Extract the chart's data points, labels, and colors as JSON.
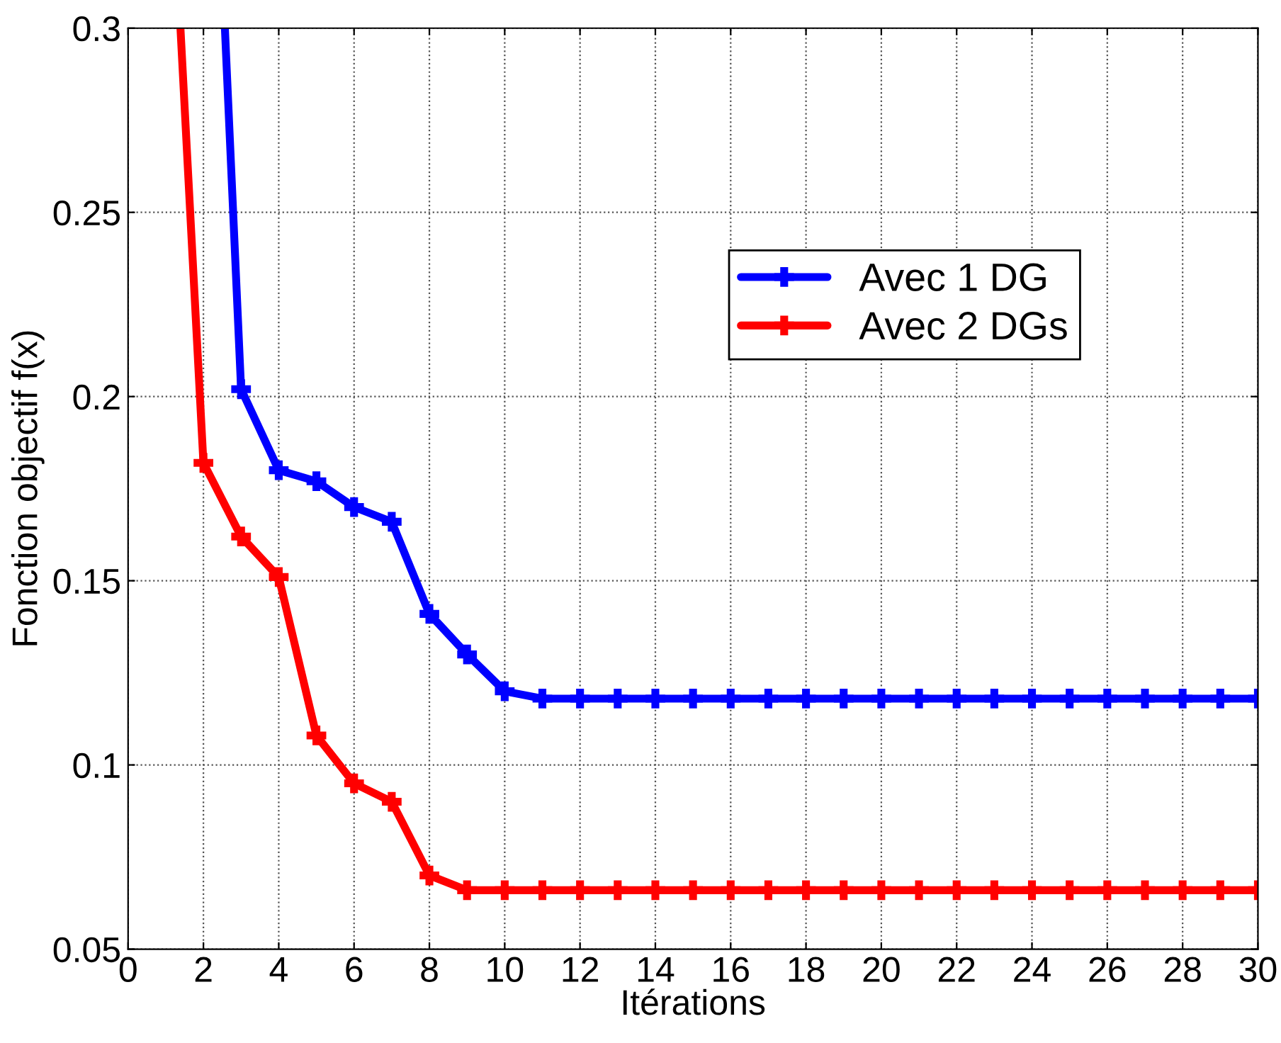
{
  "chart_data": {
    "type": "line",
    "xlabel": "Itérations",
    "ylabel": "Fonction objectif f(x)",
    "xlim": [
      0,
      30
    ],
    "xticks": [
      0,
      2,
      4,
      6,
      8,
      10,
      12,
      14,
      16,
      18,
      20,
      22,
      24,
      26,
      28,
      30
    ],
    "ylim": [
      0.05,
      0.3
    ],
    "yticks": [
      0.05,
      0.1,
      0.15,
      0.2,
      0.25,
      0.3
    ],
    "grid": true,
    "legend": "top right",
    "marker": "cross",
    "line_style": "solid",
    "series": [
      {
        "name": "Avec 1 DG",
        "color": "#0000ff",
        "x": [
          2.57,
          3,
          4,
          5,
          6,
          7,
          8,
          9,
          10,
          11,
          12,
          13,
          14,
          15,
          16,
          17,
          18,
          19,
          20,
          21,
          22,
          23,
          24,
          25,
          26,
          27,
          28,
          29,
          30
        ],
        "values": [
          0.3,
          0.202,
          0.18,
          0.177,
          0.17,
          0.166,
          0.141,
          0.13,
          0.12,
          0.118,
          0.118,
          0.118,
          0.118,
          0.118,
          0.118,
          0.118,
          0.118,
          0.118,
          0.118,
          0.118,
          0.118,
          0.118,
          0.118,
          0.118,
          0.118,
          0.118,
          0.118,
          0.118,
          0.118
        ]
      },
      {
        "name": "Avec 2 DGs",
        "color": "#ff0000",
        "x": [
          1.39,
          2,
          3,
          4,
          5,
          6,
          7,
          8,
          9,
          10,
          11,
          12,
          13,
          14,
          15,
          16,
          17,
          18,
          19,
          20,
          21,
          22,
          23,
          24,
          25,
          26,
          27,
          28,
          29,
          30
        ],
        "values": [
          0.3,
          0.182,
          0.162,
          0.151,
          0.108,
          0.095,
          0.09,
          0.07,
          0.066,
          0.066,
          0.066,
          0.066,
          0.066,
          0.066,
          0.066,
          0.066,
          0.066,
          0.066,
          0.066,
          0.066,
          0.066,
          0.066,
          0.066,
          0.066,
          0.066,
          0.066,
          0.066,
          0.066,
          0.066,
          0.066
        ]
      }
    ]
  }
}
